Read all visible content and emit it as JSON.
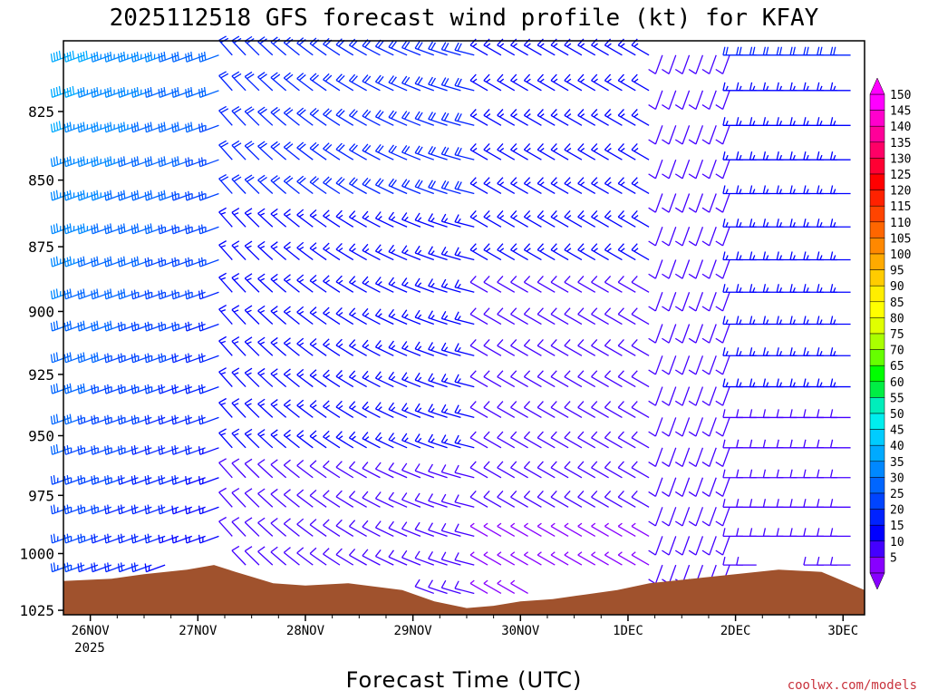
{
  "chart_data": {
    "type": "wind-barb-profile",
    "title": "2025112518 GFS forecast wind profile (kt) for KFAY",
    "xlabel": "Forecast Time (UTC)",
    "ylabel": "",
    "x_ticks": [
      "26NOV",
      "27NOV",
      "28NOV",
      "29NOV",
      "30NOV",
      "1DEC",
      "2DEC",
      "3DEC"
    ],
    "x_tick_sublabel": "2025",
    "y_ticks": [
      825,
      850,
      875,
      900,
      925,
      950,
      975,
      1000,
      1025
    ],
    "y_range_hpa": [
      800,
      1027
    ],
    "y_scale": "pressure (log)",
    "x_range_days": [
      -0.25,
      7.2
    ],
    "colorbar": {
      "labels": [
        150,
        145,
        140,
        135,
        130,
        125,
        120,
        115,
        110,
        105,
        100,
        95,
        90,
        85,
        80,
        75,
        70,
        65,
        60,
        55,
        50,
        45,
        40,
        35,
        30,
        25,
        20,
        15,
        10,
        5
      ],
      "colors": [
        "#ff00ff",
        "#ff00cc",
        "#ff0099",
        "#ff0066",
        "#ff0033",
        "#ff0000",
        "#ff2200",
        "#ff4400",
        "#ff6600",
        "#ff8800",
        "#ffaa00",
        "#ffcc00",
        "#ffee00",
        "#ffff00",
        "#e0ff00",
        "#aaff00",
        "#66ff00",
        "#00ff00",
        "#00ee44",
        "#00eebb",
        "#00eeee",
        "#00ccff",
        "#00aaff",
        "#0088ff",
        "#0066ff",
        "#0044ff",
        "#0022ff",
        "#0000ff",
        "#4400ff",
        "#8800ff"
      ]
    },
    "terrain_color": "#a0522d"
  },
  "credit": "coolwx.com/models"
}
